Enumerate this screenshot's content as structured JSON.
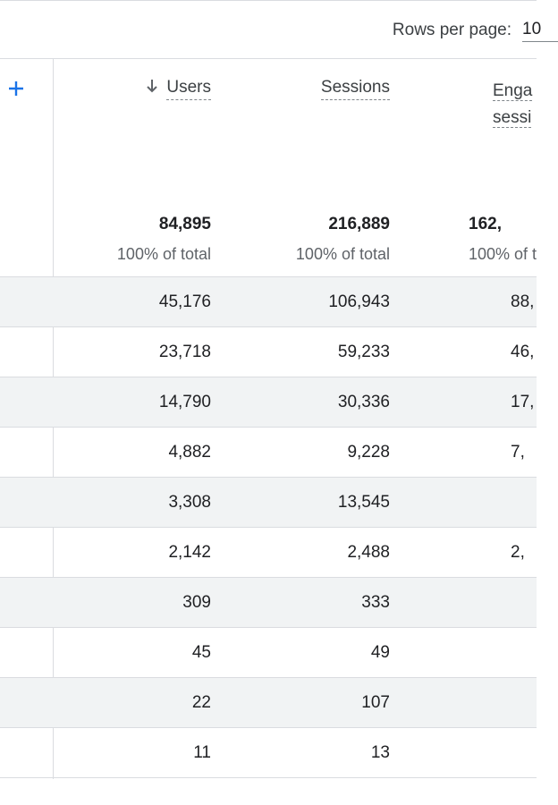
{
  "toolbar": {
    "rows_per_page_label": "Rows per page:",
    "rows_per_page_value": "10"
  },
  "table": {
    "add_dimension_icon": "plus-icon",
    "sort_icon": "arrow-down-icon",
    "columns": {
      "users": "Users",
      "sessions": "Sessions",
      "engaged_line1": "Enga",
      "engaged_line2": "sessi"
    },
    "totals": {
      "users": "84,895",
      "users_pct": "100% of total",
      "sessions": "216,889",
      "sessions_pct": "100% of total",
      "engaged": "162,",
      "engaged_pct": "100% of t"
    },
    "rows": [
      {
        "users": "45,176",
        "sessions": "106,943",
        "engaged": "88,"
      },
      {
        "users": "23,718",
        "sessions": "59,233",
        "engaged": "46,"
      },
      {
        "users": "14,790",
        "sessions": "30,336",
        "engaged": "17,"
      },
      {
        "users": "4,882",
        "sessions": "9,228",
        "engaged": "7,"
      },
      {
        "users": "3,308",
        "sessions": "13,545",
        "engaged": ""
      },
      {
        "users": "2,142",
        "sessions": "2,488",
        "engaged": "2,"
      },
      {
        "users": "309",
        "sessions": "333",
        "engaged": ""
      },
      {
        "users": "45",
        "sessions": "49",
        "engaged": ""
      },
      {
        "users": "22",
        "sessions": "107",
        "engaged": ""
      },
      {
        "users": "11",
        "sessions": "13",
        "engaged": ""
      }
    ]
  },
  "colors": {
    "accent_blue": "#1a73e8",
    "row_shade": "#f1f3f4",
    "border": "#dadce0"
  }
}
